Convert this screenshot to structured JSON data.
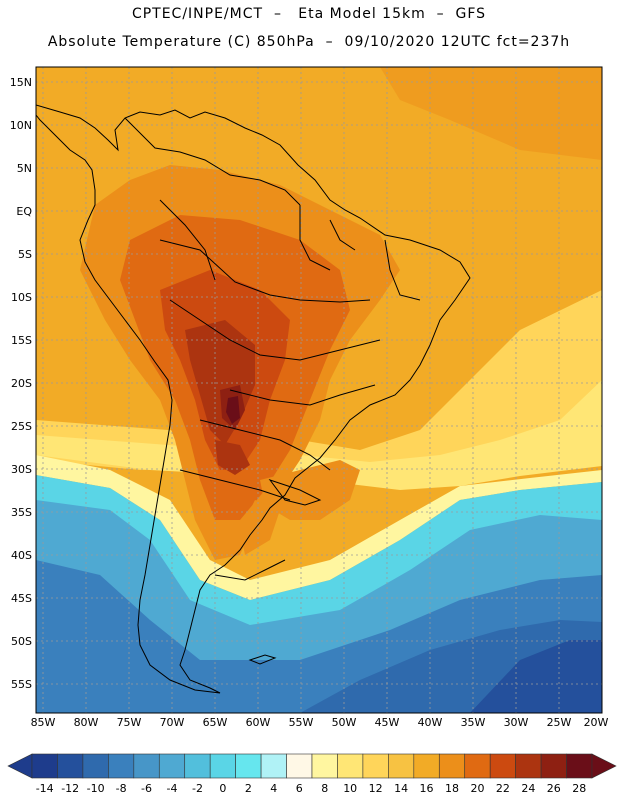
{
  "title_line1": "CPTEC/INPE/MCT  –   Eta Model 15km  –  GFS",
  "title_line2": "Absolute Temperature (C) 850hPa  –  09/10/2020 12UTC fct=237h",
  "lat_labels": [
    "15N",
    "10N",
    "5N",
    "EQ",
    "5S",
    "10S",
    "15S",
    "20S",
    "25S",
    "30S",
    "35S",
    "40S",
    "45S",
    "50S",
    "55S"
  ],
  "lon_labels": [
    "85W",
    "80W",
    "75W",
    "70W",
    "65W",
    "60W",
    "55W",
    "50W",
    "45W",
    "40W",
    "35W",
    "30W",
    "25W",
    "20W"
  ],
  "colorbar": {
    "values": [
      "-14",
      "-12",
      "-10",
      "-8",
      "-6",
      "-4",
      "-2",
      "0",
      "2",
      "4",
      "6",
      "8",
      "10",
      "12",
      "14",
      "16",
      "18",
      "20",
      "22",
      "24",
      "26",
      "28"
    ],
    "colors": [
      "#1e3c8c",
      "#24509c",
      "#2f6aad",
      "#3a80bd",
      "#4796c8",
      "#4fa9d2",
      "#52bfdc",
      "#5ad5e6",
      "#66e6ee",
      "#b0f2f6",
      "#fff8e6",
      "#fff6a0",
      "#ffe675",
      "#ffd55a",
      "#f7c242",
      "#f2ab26",
      "#ec8f1a",
      "#e06a12",
      "#cc4a10",
      "#ac3410",
      "#8e2012",
      "#6a0e18"
    ]
  }
}
